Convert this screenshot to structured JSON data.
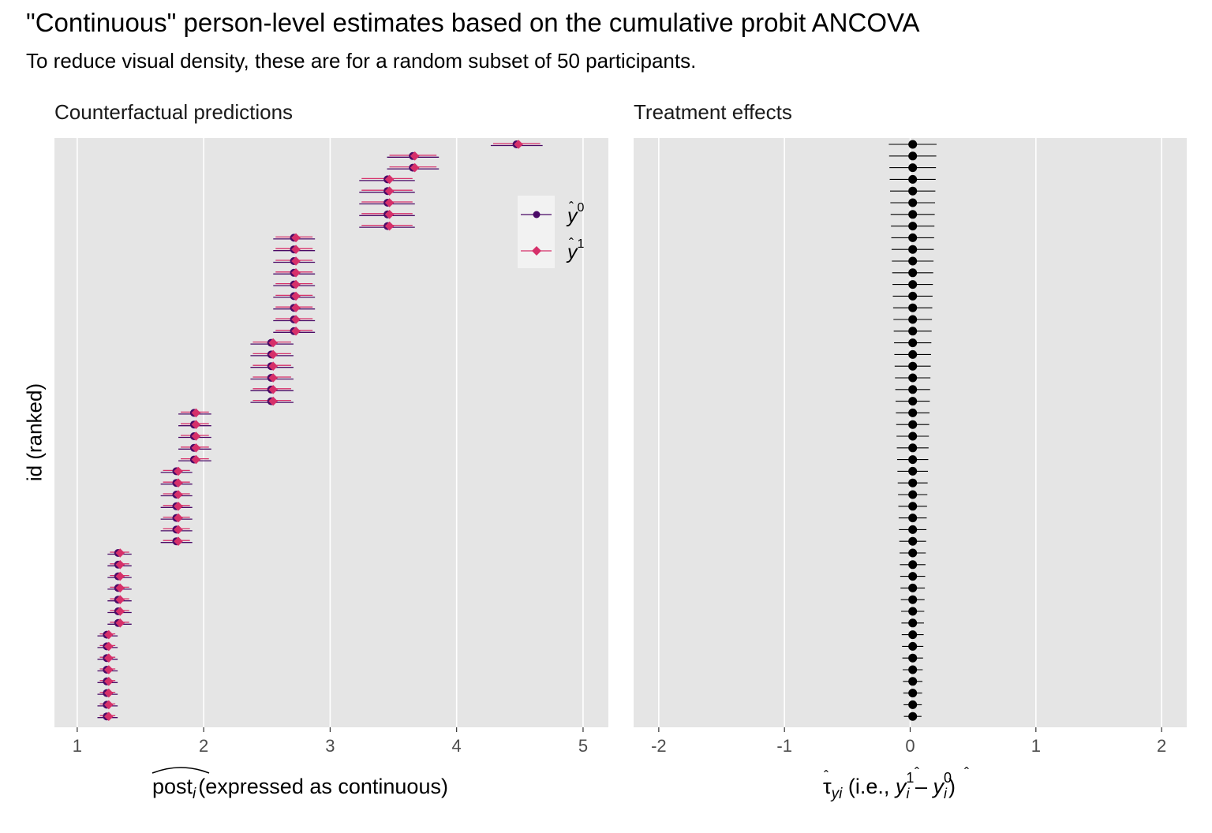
{
  "header": {
    "title": "\"Continuous\" person-level estimates based on the cumulative probit ANCOVA",
    "subtitle": "To reduce visual density, these are for a random subset of 50 participants."
  },
  "ylabel": "id (ranked)",
  "colors": {
    "y0": "#4a0a66",
    "y1": "#d6306a",
    "panel_bg": "#e5e5e5",
    "effect": "#000000"
  },
  "chart_data": [
    {
      "type": "scatter",
      "panel_title": "Counterfactual predictions",
      "xlabel": {
        "hat_text": "post",
        "subscript": "i",
        "rest": "(expressed as continuous)"
      },
      "xlim": [
        0.82,
        5.2
      ],
      "xticks": [
        1,
        2,
        3,
        4,
        5
      ],
      "legend": {
        "placement": "top-right",
        "entries": [
          {
            "key": "y0",
            "sup": "0"
          },
          {
            "key": "y1",
            "sup": "1"
          }
        ]
      },
      "groups": [
        {
          "count": 1,
          "estimate": 4.48,
          "lower": 4.27,
          "upper": 4.68
        },
        {
          "count": 2,
          "estimate": 3.66,
          "lower": 3.45,
          "upper": 3.86
        },
        {
          "count": 5,
          "estimate": 3.46,
          "lower": 3.23,
          "upper": 3.67
        },
        {
          "count": 9,
          "estimate": 2.72,
          "lower": 2.55,
          "upper": 2.88
        },
        {
          "count": 6,
          "estimate": 2.54,
          "lower": 2.37,
          "upper": 2.71
        },
        {
          "count": 5,
          "estimate": 1.93,
          "lower": 1.8,
          "upper": 2.06
        },
        {
          "count": 7,
          "estimate": 1.79,
          "lower": 1.66,
          "upper": 1.91
        },
        {
          "count": 7,
          "estimate": 1.33,
          "lower": 1.24,
          "upper": 1.43
        },
        {
          "count": 8,
          "estimate": 1.24,
          "lower": 1.16,
          "upper": 1.32
        }
      ]
    },
    {
      "type": "scatter",
      "panel_title": "Treatment effects",
      "xlabel": {
        "tau": "τ",
        "tau_sub": "yi",
        "text": "(i.e., ",
        "y_sup1": "1",
        "y_sup0": "0",
        "y_sub": "i",
        "close": ")"
      },
      "xlim": [
        -2.2,
        2.2
      ],
      "xticks": [
        -2,
        -1,
        0,
        1,
        2
      ],
      "tick_labels": [
        "-2",
        "-1",
        "0",
        "1",
        "2"
      ],
      "estimate": 0.02,
      "halfwidth_top": 0.19,
      "halfwidth_bottom": 0.07,
      "n": 50
    }
  ]
}
